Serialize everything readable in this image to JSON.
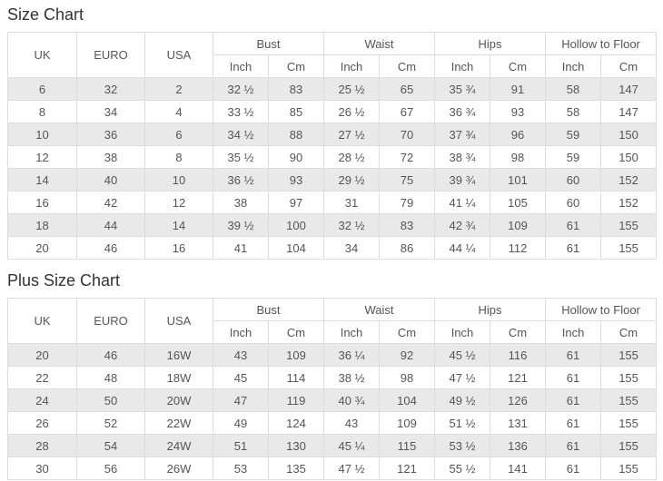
{
  "colors": {
    "stripe_row": "#e9e9e9",
    "border": "#dddddd",
    "text": "#555555",
    "title_text": "#333333",
    "background": "#ffffff"
  },
  "chart_data": [
    {
      "type": "table",
      "title": "Size Chart",
      "single_headers": [
        "UK",
        "EURO",
        "USA"
      ],
      "measure_headers": [
        "Bust",
        "Waist",
        "Hips",
        "Hollow to Floor"
      ],
      "unit_headers": [
        "Inch",
        "Cm"
      ],
      "rows": [
        [
          "6",
          "32",
          "2",
          "32 ½",
          "83",
          "25 ½",
          "65",
          "35 ¾",
          "91",
          "58",
          "147"
        ],
        [
          "8",
          "34",
          "4",
          "33 ½",
          "85",
          "26 ½",
          "67",
          "36 ¾",
          "93",
          "58",
          "147"
        ],
        [
          "10",
          "36",
          "6",
          "34 ½",
          "88",
          "27 ½",
          "70",
          "37 ¾",
          "96",
          "59",
          "150"
        ],
        [
          "12",
          "38",
          "8",
          "35 ½",
          "90",
          "28 ½",
          "72",
          "38 ¾",
          "98",
          "59",
          "150"
        ],
        [
          "14",
          "40",
          "10",
          "36 ½",
          "93",
          "29 ½",
          "75",
          "39 ¾",
          "101",
          "60",
          "152"
        ],
        [
          "16",
          "42",
          "12",
          "38",
          "97",
          "31",
          "79",
          "41 ¼",
          "105",
          "60",
          "152"
        ],
        [
          "18",
          "44",
          "14",
          "39 ½",
          "100",
          "32 ½",
          "83",
          "42 ¾",
          "109",
          "61",
          "155"
        ],
        [
          "20",
          "46",
          "16",
          "41",
          "104",
          "34",
          "86",
          "44 ¼",
          "112",
          "61",
          "155"
        ]
      ]
    },
    {
      "type": "table",
      "title": "Plus Size Chart",
      "single_headers": [
        "UK",
        "EURO",
        "USA"
      ],
      "measure_headers": [
        "Bust",
        "Waist",
        "Hips",
        "Hollow to Floor"
      ],
      "unit_headers": [
        "Inch",
        "Cm"
      ],
      "rows": [
        [
          "20",
          "46",
          "16W",
          "43",
          "109",
          "36 ¼",
          "92",
          "45 ½",
          "116",
          "61",
          "155"
        ],
        [
          "22",
          "48",
          "18W",
          "45",
          "114",
          "38 ½",
          "98",
          "47 ½",
          "121",
          "61",
          "155"
        ],
        [
          "24",
          "50",
          "20W",
          "47",
          "119",
          "40 ¾",
          "104",
          "49 ½",
          "126",
          "61",
          "155"
        ],
        [
          "26",
          "52",
          "22W",
          "49",
          "124",
          "43",
          "109",
          "51 ½",
          "131",
          "61",
          "155"
        ],
        [
          "28",
          "54",
          "24W",
          "51",
          "130",
          "45 ¼",
          "115",
          "53 ½",
          "136",
          "61",
          "155"
        ],
        [
          "30",
          "56",
          "26W",
          "53",
          "135",
          "47 ½",
          "121",
          "55 ½",
          "141",
          "61",
          "155"
        ]
      ]
    }
  ]
}
